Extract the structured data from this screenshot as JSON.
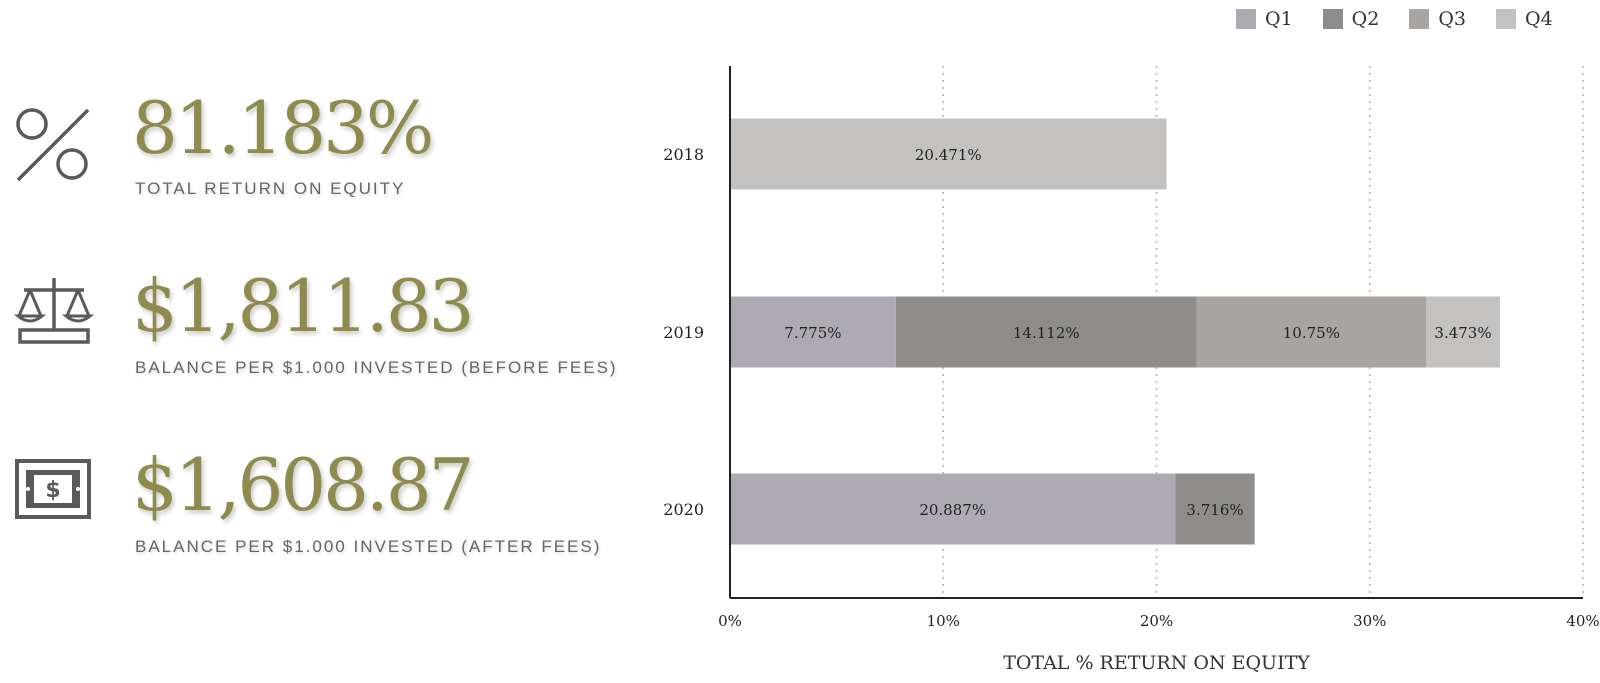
{
  "stats": [
    {
      "value": "81.183%",
      "label": "TOTAL RETURN ON EQUITY",
      "icon": "percent-icon"
    },
    {
      "value": "$1,811.83",
      "label": "BALANCE PER $1.000 INVESTED (BEFORE FEES)",
      "icon": "scales-icon"
    },
    {
      "value": "$1,608.87",
      "label": "BALANCE PER $1.000 INVESTED (AFTER FEES)",
      "icon": "banknote-icon"
    }
  ],
  "colors": {
    "accent": "#8f8a4d",
    "icon": "#5a5a5a",
    "axis": "#222222",
    "grid": "#b5b5b5"
  },
  "legend": [
    {
      "label": "Q1",
      "color": "#adabb1"
    },
    {
      "label": "Q2",
      "color": "#8e8d8b"
    },
    {
      "label": "Q3",
      "color": "#a7a4a2"
    },
    {
      "label": "Q4",
      "color": "#c3c2c0"
    }
  ],
  "chart_data": {
    "type": "bar",
    "orientation": "horizontal",
    "stacked": true,
    "categories": [
      "2018",
      "2019",
      "2020"
    ],
    "series": [
      {
        "name": "Q1",
        "color": "#adabb1",
        "values": [
          null,
          7.775,
          20.887
        ],
        "labels": [
          "",
          "7.775%",
          "20.887%"
        ]
      },
      {
        "name": "Q2",
        "color": "#8e8d8b",
        "values": [
          null,
          14.112,
          3.716
        ],
        "labels": [
          "",
          "14.112%",
          "3.716%"
        ]
      },
      {
        "name": "Q3",
        "color": "#a7a4a2",
        "values": [
          null,
          10.75,
          null
        ],
        "labels": [
          "",
          "10.75%",
          ""
        ]
      },
      {
        "name": "Q4",
        "color": "#c3c2c0",
        "values": [
          20.471,
          3.473,
          null
        ],
        "labels": [
          "20.471%",
          "3.473%",
          ""
        ]
      }
    ],
    "xlabel": "TOTAL % RETURN ON EQUITY",
    "ylabel": "",
    "xlim": [
      0,
      40
    ],
    "xticks": [
      "0%",
      "10%",
      "20%",
      "30%",
      "40%"
    ],
    "grid": "vertical-dotted",
    "legend_position": "top-right"
  }
}
